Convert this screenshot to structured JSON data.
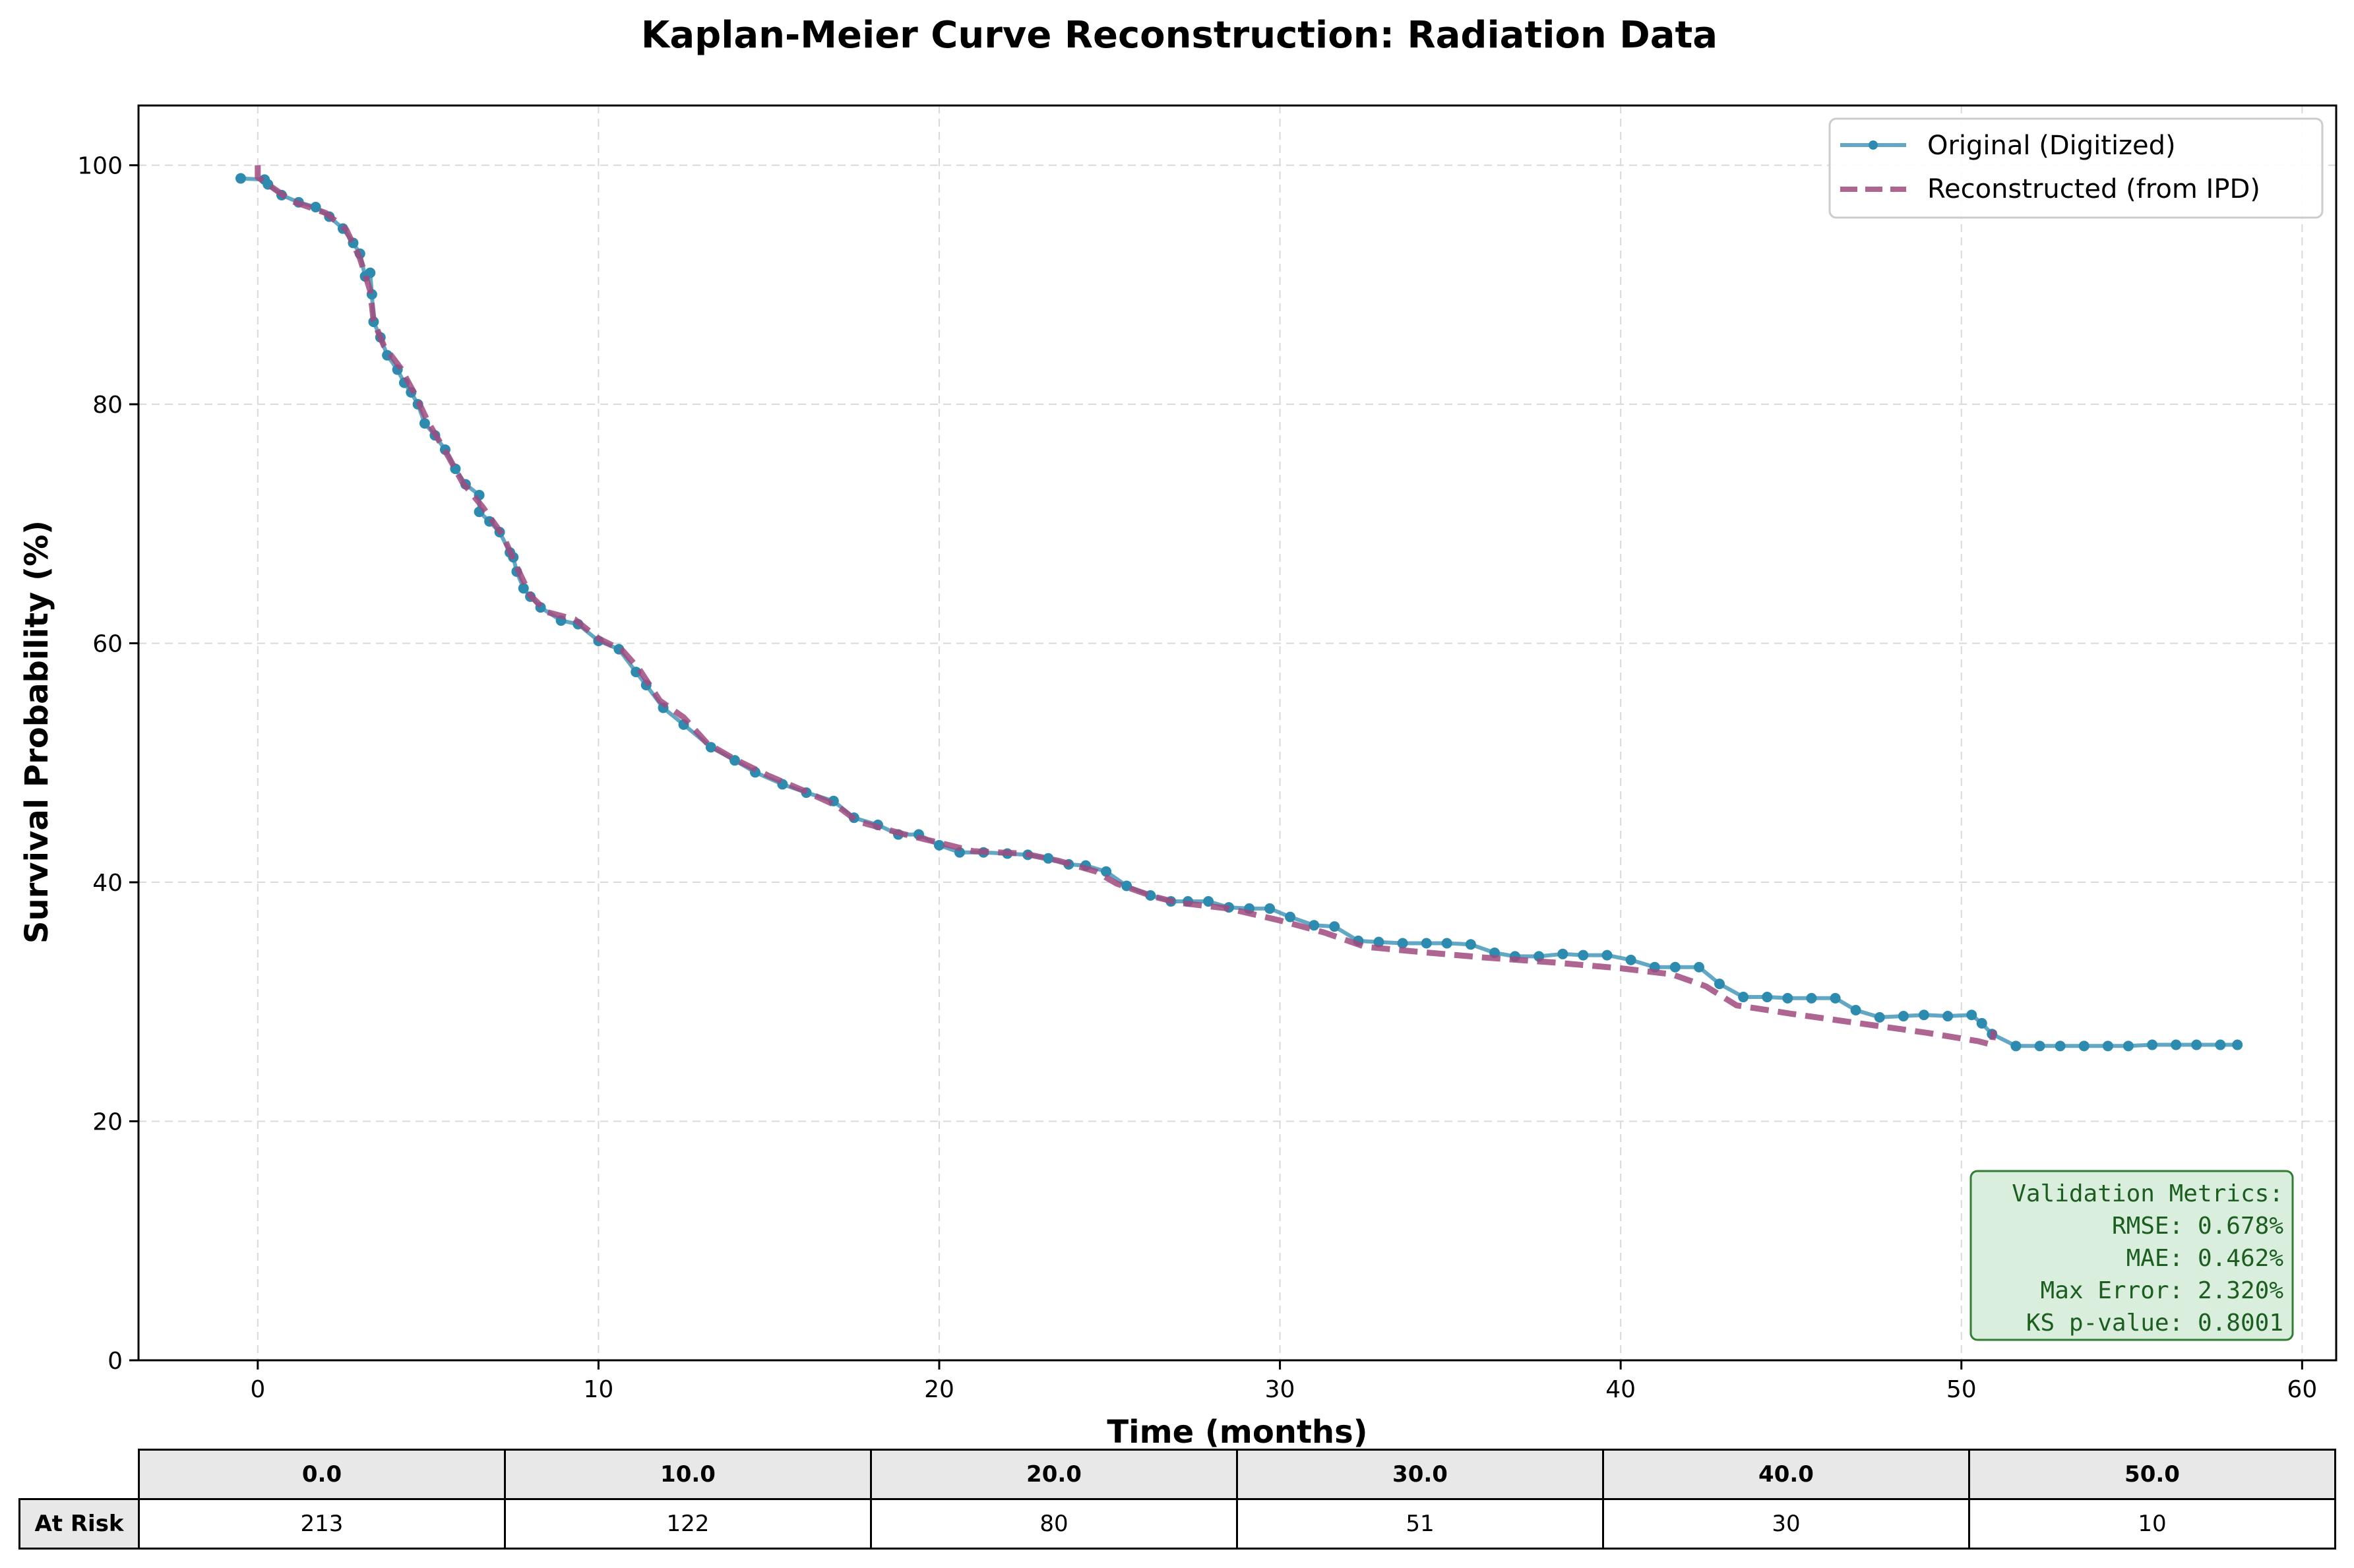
{
  "chart_data": {
    "type": "line",
    "title": "Kaplan-Meier Curve Reconstruction: Radiation Data",
    "xlabel": "Time (months)",
    "ylabel": "Survival Probability (%)",
    "xlim": [
      -3.5,
      61
    ],
    "ylim": [
      0,
      105
    ],
    "xticks": [
      0,
      10,
      20,
      30,
      40,
      50,
      60
    ],
    "yticks": [
      0,
      20,
      40,
      60,
      80,
      100
    ],
    "grid": true,
    "legend_position": "top-right",
    "series": [
      {
        "name": "Original (Digitized)",
        "color": "#2e8bb0",
        "style": "solid-with-markers",
        "points": [
          [
            -0.5,
            98.9
          ],
          [
            0.2,
            98.8
          ],
          [
            0.3,
            98.4
          ],
          [
            0.7,
            97.5
          ],
          [
            1.2,
            96.9
          ],
          [
            1.7,
            96.5
          ],
          [
            2.1,
            95.7
          ],
          [
            2.5,
            94.7
          ],
          [
            2.8,
            93.5
          ],
          [
            3.0,
            92.6
          ],
          [
            3.15,
            90.7
          ],
          [
            3.3,
            91.0
          ],
          [
            3.35,
            89.2
          ],
          [
            3.4,
            86.9
          ],
          [
            3.6,
            85.6
          ],
          [
            3.8,
            84.1
          ],
          [
            4.1,
            82.9
          ],
          [
            4.3,
            81.8
          ],
          [
            4.5,
            81.0
          ],
          [
            4.7,
            80.0
          ],
          [
            4.9,
            78.4
          ],
          [
            5.2,
            77.4
          ],
          [
            5.5,
            76.2
          ],
          [
            5.8,
            74.6
          ],
          [
            6.1,
            73.3
          ],
          [
            6.5,
            72.4
          ],
          [
            6.5,
            71.0
          ],
          [
            6.8,
            70.2
          ],
          [
            7.1,
            69.3
          ],
          [
            7.4,
            67.6
          ],
          [
            7.5,
            67.2
          ],
          [
            7.6,
            66.0
          ],
          [
            7.8,
            64.6
          ],
          [
            8.0,
            63.9
          ],
          [
            8.3,
            63.0
          ],
          [
            8.9,
            61.9
          ],
          [
            9.4,
            61.6
          ],
          [
            10.0,
            60.2
          ],
          [
            10.6,
            59.5
          ],
          [
            11.1,
            57.6
          ],
          [
            11.4,
            56.5
          ],
          [
            11.9,
            54.6
          ],
          [
            12.5,
            53.2
          ],
          [
            13.3,
            51.3
          ],
          [
            14.0,
            50.2
          ],
          [
            14.6,
            49.2
          ],
          [
            15.4,
            48.2
          ],
          [
            16.1,
            47.5
          ],
          [
            16.9,
            46.8
          ],
          [
            17.5,
            45.4
          ],
          [
            18.2,
            44.8
          ],
          [
            18.8,
            44.0
          ],
          [
            19.4,
            44.0
          ],
          [
            20.0,
            43.1
          ],
          [
            20.6,
            42.5
          ],
          [
            21.3,
            42.5
          ],
          [
            22.0,
            42.4
          ],
          [
            22.6,
            42.3
          ],
          [
            23.2,
            42.0
          ],
          [
            23.8,
            41.5
          ],
          [
            24.3,
            41.4
          ],
          [
            24.9,
            40.9
          ],
          [
            25.5,
            39.7
          ],
          [
            26.2,
            38.9
          ],
          [
            26.8,
            38.4
          ],
          [
            27.3,
            38.4
          ],
          [
            27.9,
            38.4
          ],
          [
            28.5,
            37.9
          ],
          [
            29.1,
            37.8
          ],
          [
            29.7,
            37.8
          ],
          [
            30.3,
            37.1
          ],
          [
            31.0,
            36.4
          ],
          [
            31.6,
            36.3
          ],
          [
            32.3,
            35.1
          ],
          [
            32.9,
            35.0
          ],
          [
            33.6,
            34.9
          ],
          [
            34.3,
            34.9
          ],
          [
            34.9,
            34.9
          ],
          [
            35.6,
            34.8
          ],
          [
            36.3,
            34.1
          ],
          [
            36.9,
            33.8
          ],
          [
            37.6,
            33.8
          ],
          [
            38.3,
            34.0
          ],
          [
            38.9,
            33.9
          ],
          [
            39.6,
            33.9
          ],
          [
            40.3,
            33.5
          ],
          [
            41.0,
            32.9
          ],
          [
            41.6,
            32.9
          ],
          [
            42.3,
            32.9
          ],
          [
            42.9,
            31.5
          ],
          [
            43.6,
            30.4
          ],
          [
            44.3,
            30.4
          ],
          [
            44.9,
            30.3
          ],
          [
            45.6,
            30.3
          ],
          [
            46.3,
            30.3
          ],
          [
            46.9,
            29.3
          ],
          [
            47.6,
            28.7
          ],
          [
            48.3,
            28.8
          ],
          [
            48.9,
            28.9
          ],
          [
            49.6,
            28.8
          ],
          [
            50.3,
            28.9
          ],
          [
            50.6,
            28.2
          ],
          [
            50.9,
            27.3
          ],
          [
            51.6,
            26.3
          ],
          [
            52.3,
            26.3
          ],
          [
            52.9,
            26.3
          ],
          [
            53.6,
            26.3
          ],
          [
            54.3,
            26.3
          ],
          [
            54.9,
            26.3
          ],
          [
            55.6,
            26.4
          ],
          [
            56.3,
            26.4
          ],
          [
            56.9,
            26.4
          ],
          [
            57.6,
            26.4
          ],
          [
            58.1,
            26.4
          ]
        ]
      },
      {
        "name": "Reconstructed (from IPD)",
        "color": "#a04a7e",
        "style": "dashed",
        "points": [
          [
            0.0,
            100.0
          ],
          [
            0.0,
            99.0
          ],
          [
            0.5,
            98.0
          ],
          [
            1.0,
            97.0
          ],
          [
            2.0,
            96.0
          ],
          [
            2.6,
            94.6
          ],
          [
            3.0,
            92.2
          ],
          [
            3.3,
            89.5
          ],
          [
            3.4,
            87.0
          ],
          [
            3.7,
            84.9
          ],
          [
            4.2,
            83.0
          ],
          [
            4.6,
            80.9
          ],
          [
            5.0,
            78.5
          ],
          [
            5.6,
            75.6
          ],
          [
            6.0,
            73.5
          ],
          [
            6.6,
            71.4
          ],
          [
            7.2,
            69.0
          ],
          [
            7.6,
            66.4
          ],
          [
            8.0,
            64.0
          ],
          [
            8.5,
            62.6
          ],
          [
            9.3,
            62.0
          ],
          [
            10.0,
            60.4
          ],
          [
            10.7,
            59.4
          ],
          [
            11.2,
            57.8
          ],
          [
            11.8,
            55.2
          ],
          [
            12.5,
            53.8
          ],
          [
            13.2,
            51.6
          ],
          [
            14.0,
            50.3
          ],
          [
            15.0,
            48.9
          ],
          [
            16.0,
            47.7
          ],
          [
            17.0,
            46.4
          ],
          [
            17.6,
            45.1
          ],
          [
            19.0,
            44.0
          ],
          [
            20.3,
            43.1
          ],
          [
            21.0,
            42.6
          ],
          [
            22.5,
            42.4
          ],
          [
            23.5,
            41.8
          ],
          [
            24.6,
            40.9
          ],
          [
            25.2,
            39.9
          ],
          [
            26.3,
            38.8
          ],
          [
            27.0,
            38.3
          ],
          [
            28.5,
            37.8
          ],
          [
            30.0,
            36.8
          ],
          [
            31.3,
            35.8
          ],
          [
            32.5,
            34.6
          ],
          [
            34.0,
            34.2
          ],
          [
            36.0,
            33.7
          ],
          [
            38.0,
            33.3
          ],
          [
            40.0,
            32.8
          ],
          [
            41.5,
            32.3
          ],
          [
            42.5,
            31.3
          ],
          [
            43.4,
            29.7
          ],
          [
            45.0,
            29.0
          ],
          [
            47.0,
            28.2
          ],
          [
            49.0,
            27.4
          ],
          [
            50.5,
            26.7
          ],
          [
            50.9,
            26.4
          ],
          [
            50.95,
            27.6
          ]
        ]
      }
    ],
    "annotation": {
      "lines": [
        "Validation Metrics:",
        "RMSE: 0.678%",
        "MAE: 0.462%",
        "Max Error: 2.320%",
        "KS p-value: 0.8001"
      ],
      "background": "#d9eedc",
      "border": "#2e7d32"
    },
    "risk_table": {
      "row_label": "At Risk",
      "times": [
        "0.0",
        "10.0",
        "20.0",
        "30.0",
        "40.0",
        "50.0"
      ],
      "counts": [
        "213",
        "122",
        "80",
        "51",
        "30",
        "10"
      ]
    }
  }
}
